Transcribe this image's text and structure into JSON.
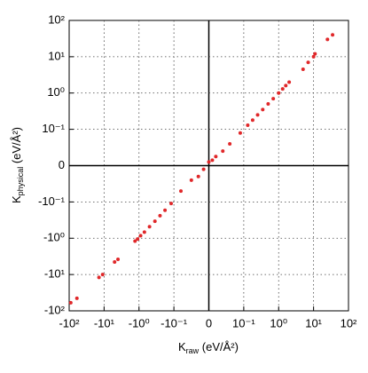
{
  "chart_data": {
    "type": "scatter",
    "xscale": "symlog",
    "yscale": "symlog",
    "linthresh": 0.1,
    "color": "#e0282a",
    "grid": true,
    "x_label": {
      "symbol": "K",
      "subscript": "raw",
      "unit": " (eV/Å²)"
    },
    "y_label": {
      "symbol": "K",
      "subscript": "physical",
      "unit": " (eV/Å²)"
    },
    "xlim": [
      -100,
      100
    ],
    "ylim": [
      -100,
      100
    ],
    "xticks": [
      {
        "value": -100,
        "label": "-10²"
      },
      {
        "value": -10,
        "label": "-10¹"
      },
      {
        "value": -1,
        "label": "-10⁰"
      },
      {
        "value": -0.1,
        "label": "-10⁻¹"
      },
      0,
      {
        "value": 0.1,
        "label": "10⁻¹"
      },
      {
        "value": 1,
        "label": "10⁰"
      },
      {
        "value": 10,
        "label": "10¹"
      },
      {
        "value": 100,
        "label": "10²"
      }
    ],
    "yticks": [
      {
        "value": -100,
        "label": "-10²"
      },
      {
        "value": -10,
        "label": "-10¹"
      },
      {
        "value": -1,
        "label": "-10⁰"
      },
      {
        "value": -0.1,
        "label": "-10⁻¹"
      },
      0,
      {
        "value": 0.1,
        "label": "10⁻¹"
      },
      {
        "value": 1,
        "label": "10⁰"
      },
      {
        "value": 10,
        "label": "10¹"
      },
      {
        "value": 100,
        "label": "10²"
      }
    ],
    "x": [
      -90,
      -60,
      -14,
      -11,
      -5,
      -4,
      -1.3,
      -1.1,
      -0.9,
      -0.7,
      -0.5,
      -0.35,
      -0.25,
      -0.18,
      -0.12,
      -0.08,
      -0.05,
      -0.03,
      -0.015,
      0,
      0.01,
      0.02,
      0.04,
      0.06,
      0.09,
      0.13,
      0.18,
      0.25,
      0.35,
      0.5,
      0.7,
      1,
      1.3,
      1.6,
      2,
      5,
      7,
      10,
      11,
      25,
      35
    ],
    "y": [
      -60,
      -45,
      -12,
      -10,
      -4.5,
      -3.8,
      -1.2,
      -1.05,
      -0.85,
      -0.68,
      -0.48,
      -0.34,
      -0.24,
      -0.17,
      -0.11,
      -0.07,
      -0.04,
      -0.03,
      -0.01,
      0.01,
      0.015,
      0.025,
      0.04,
      0.06,
      0.09,
      0.13,
      0.18,
      0.25,
      0.35,
      0.5,
      0.7,
      1,
      1.3,
      1.6,
      2,
      4.5,
      7,
      10,
      12,
      30,
      40
    ]
  }
}
